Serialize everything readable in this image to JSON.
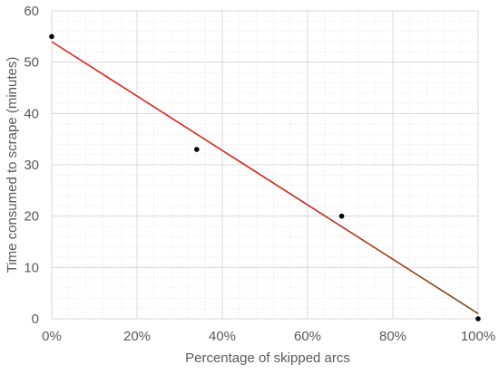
{
  "chart_data": {
    "type": "scatter",
    "title": "",
    "xlabel": "Percentage of skipped arcs",
    "ylabel": "Time consumed to scrape (minutes)",
    "x_ticks": [
      "0%",
      "20%",
      "40%",
      "60%",
      "80%",
      "100%"
    ],
    "y_ticks": [
      "0",
      "10",
      "20",
      "30",
      "40",
      "50",
      "60"
    ],
    "xlim": [
      0,
      1
    ],
    "ylim": [
      0,
      60
    ],
    "major_grid": true,
    "minor_grid": true,
    "points": [
      {
        "x": 0.0,
        "y": 55
      },
      {
        "x": 0.34,
        "y": 33
      },
      {
        "x": 0.68,
        "y": 20
      },
      {
        "x": 1.0,
        "y": 0
      }
    ],
    "trendline": {
      "type": "linear",
      "from": {
        "x": 0.0,
        "y": 54
      },
      "to": {
        "x": 1.0,
        "y": 1
      },
      "color_start": "#e8201e",
      "color_end": "#7a4a1a"
    },
    "colors": {
      "point": "#000000",
      "major_grid": "#d9d9d9",
      "minor_grid": "#eeeeee",
      "text": "#595959"
    }
  }
}
